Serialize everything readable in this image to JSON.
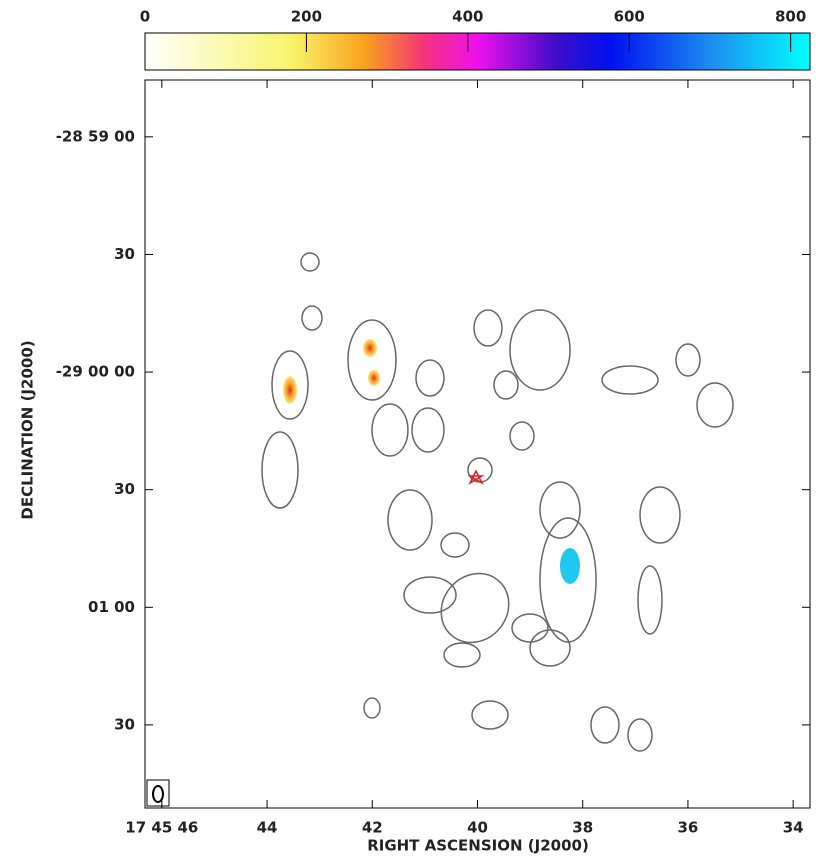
{
  "chart_data": {
    "type": "image",
    "xlabel": "RIGHT ASCENSION (J2000)",
    "ylabel": "DECLINATION (J2000)",
    "xlim": [
      46.32,
      33.68
    ],
    "xticks": [
      {
        "value": 46,
        "label": "17 45 46"
      },
      44,
      42,
      40,
      38,
      36,
      34
    ],
    "ylim": [
      -104511.2,
      -104325.5
    ],
    "yticks": [
      {
        "value": -104340,
        "label": "-28 59 00"
      },
      {
        "value": -104370,
        "label": "30"
      },
      {
        "value": -104400,
        "label": "-29 00 00"
      },
      {
        "value": -104430,
        "label": "30"
      },
      {
        "value": -104460,
        "label": "01 00"
      },
      {
        "value": -104490,
        "label": "30"
      }
    ],
    "colorbar": {
      "lim": [
        0,
        824
      ],
      "ticks": [
        0,
        200,
        400,
        600,
        800
      ]
    }
  }
}
